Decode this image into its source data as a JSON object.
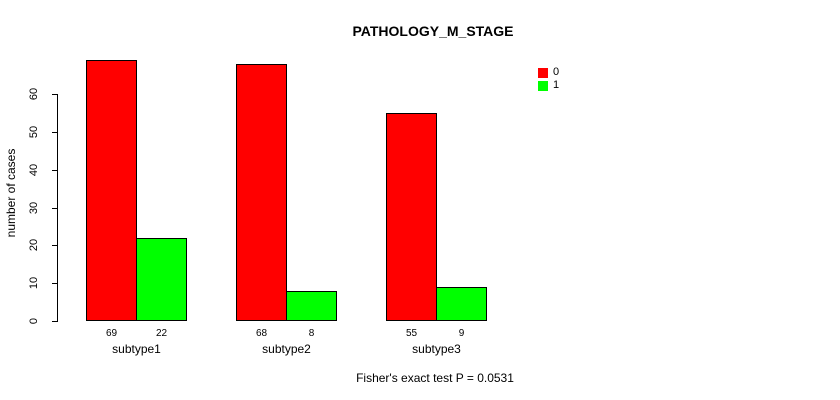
{
  "title": "PATHOLOGY_M_STAGE",
  "chart_data": {
    "type": "bar",
    "title": "PATHOLOGY_M_STAGE",
    "categories": [
      "subtype1",
      "subtype2",
      "subtype3"
    ],
    "series": [
      {
        "name": "0",
        "color": "#ff0000",
        "values": [
          69,
          68,
          55
        ]
      },
      {
        "name": "1",
        "color": "#00ff00",
        "values": [
          22,
          8,
          9
        ]
      }
    ],
    "xlabel": "",
    "ylabel": "number of cases",
    "yticks": [
      0,
      10,
      20,
      30,
      40,
      50,
      60
    ],
    "ylim": [
      0,
      72
    ],
    "grid": false,
    "bar_value_labels": true,
    "legend_position": "top-right",
    "annotation": "Fisher's exact test P = 0.0531"
  },
  "footer": {
    "note": "Fisher's exact test P = 0.0531"
  }
}
